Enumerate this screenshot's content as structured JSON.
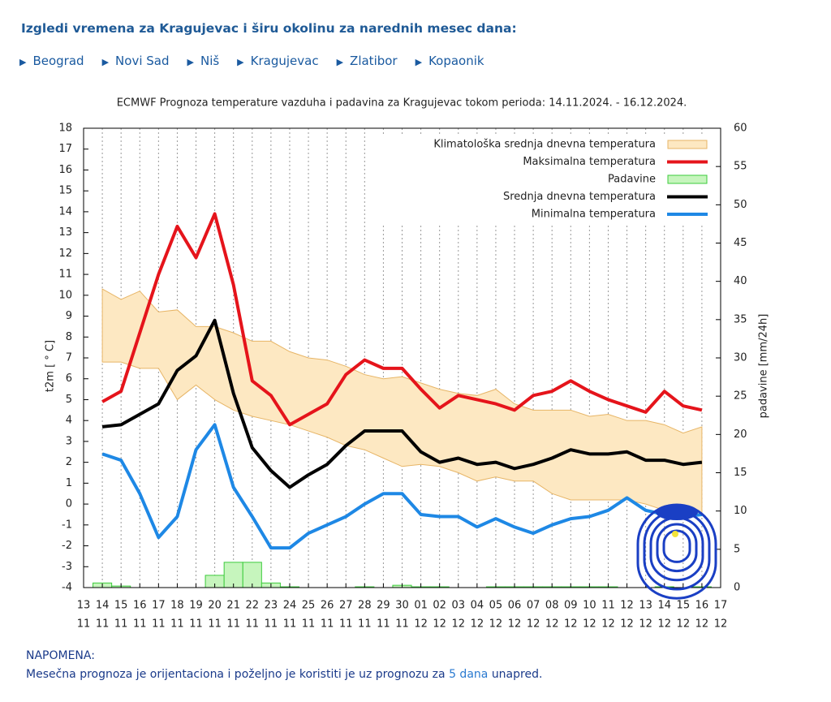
{
  "header": {
    "title": "Izgledi vremena za Kragujevac i širu okolinu za narednih mesec dana:"
  },
  "nav": [
    "Beograd",
    "Novi Sad",
    "Niš",
    "Kragujevac",
    "Zlatibor",
    "Kopaonik"
  ],
  "chart_data": {
    "type": "line",
    "title": "ECMWF Prognoza temperature vazduha i padavina za Kragujevac tokom perioda: 14.11.2024. - 16.12.2024.",
    "y_label": "t2m [ ° C]",
    "y2_label": "padavine [mm/24h]",
    "categories": [
      [
        "13",
        "11"
      ],
      [
        "14",
        "11"
      ],
      [
        "15",
        "11"
      ],
      [
        "16",
        "11"
      ],
      [
        "17",
        "11"
      ],
      [
        "18",
        "11"
      ],
      [
        "19",
        "11"
      ],
      [
        "20",
        "11"
      ],
      [
        "21",
        "11"
      ],
      [
        "22",
        "11"
      ],
      [
        "23",
        "11"
      ],
      [
        "24",
        "11"
      ],
      [
        "25",
        "11"
      ],
      [
        "26",
        "11"
      ],
      [
        "27",
        "11"
      ],
      [
        "28",
        "11"
      ],
      [
        "29",
        "11"
      ],
      [
        "30",
        "11"
      ],
      [
        "01",
        "12"
      ],
      [
        "02",
        "12"
      ],
      [
        "03",
        "12"
      ],
      [
        "04",
        "12"
      ],
      [
        "05",
        "12"
      ],
      [
        "06",
        "12"
      ],
      [
        "07",
        "12"
      ],
      [
        "08",
        "12"
      ],
      [
        "09",
        "12"
      ],
      [
        "10",
        "12"
      ],
      [
        "11",
        "12"
      ],
      [
        "12",
        "12"
      ],
      [
        "13",
        "12"
      ],
      [
        "14",
        "12"
      ],
      [
        "15",
        "12"
      ],
      [
        "16",
        "12"
      ],
      [
        "17",
        "12"
      ]
    ],
    "ylim": [
      -4,
      18
    ],
    "yticks": [
      -4,
      -3,
      -2,
      -1,
      0,
      1,
      2,
      3,
      4,
      5,
      6,
      7,
      8,
      9,
      10,
      11,
      12,
      13,
      14,
      15,
      16,
      17,
      18
    ],
    "y2lim": [
      0,
      60
    ],
    "y2ticks": [
      0,
      5,
      10,
      15,
      20,
      25,
      30,
      35,
      40,
      45,
      50,
      55,
      60
    ],
    "grid": true,
    "series": [
      {
        "name": "Klimatološka srednja dnevna temperatura",
        "type": "band",
        "color": "#fde8c2",
        "high": [
          null,
          10.3,
          9.8,
          10.2,
          9.2,
          9.3,
          8.5,
          8.5,
          8.2,
          7.8,
          7.8,
          7.3,
          7.0,
          6.9,
          6.6,
          6.2,
          6.0,
          6.1,
          5.8,
          5.5,
          5.3,
          5.2,
          5.5,
          4.8,
          4.5,
          4.5,
          4.5,
          4.2,
          4.3,
          4.0,
          4.0,
          3.8,
          3.4,
          3.7,
          null
        ],
        "low": [
          null,
          6.8,
          6.8,
          6.5,
          6.5,
          5.0,
          5.7,
          5.0,
          4.5,
          4.2,
          4.0,
          3.8,
          3.5,
          3.2,
          2.8,
          2.6,
          2.2,
          1.8,
          1.9,
          1.8,
          1.5,
          1.1,
          1.3,
          1.1,
          1.1,
          0.5,
          0.2,
          0.2,
          0.2,
          0.2,
          0.0,
          -0.3,
          -0.5,
          -0.5,
          null
        ]
      },
      {
        "name": "Maksimalna temperatura",
        "type": "line",
        "color": "#e5141b",
        "values": [
          null,
          4.9,
          5.4,
          8.2,
          11,
          13.3,
          11.8,
          13.9,
          10.5,
          5.9,
          5.2,
          3.8,
          4.3,
          4.8,
          6.2,
          6.9,
          6.5,
          6.5,
          5.5,
          4.6,
          5.2,
          5.0,
          4.8,
          4.5,
          5.2,
          5.4,
          5.9,
          5.4,
          5.0,
          4.7,
          4.4,
          5.4,
          4.7,
          4.5,
          null
        ]
      },
      {
        "name": "Padavine",
        "type": "bar",
        "axis": "y2",
        "color": "#c6f5bd",
        "values": [
          null,
          0.6,
          0.2,
          0,
          0,
          0,
          0,
          1.6,
          3.3,
          3.3,
          0.6,
          0.1,
          0,
          0,
          0,
          0.1,
          0,
          0.3,
          0.1,
          0.1,
          0,
          0,
          0.1,
          0.1,
          0.1,
          0.1,
          0.1,
          0.1,
          0.1,
          0,
          0,
          0.1,
          0,
          0.1,
          null
        ]
      },
      {
        "name": "Srednja dnevna temperatura",
        "type": "line",
        "color": "#000000",
        "values": [
          null,
          3.7,
          3.8,
          4.3,
          4.8,
          6.4,
          7.1,
          8.8,
          5.3,
          2.7,
          1.6,
          0.8,
          1.4,
          1.9,
          2.8,
          3.5,
          3.5,
          3.5,
          2.5,
          2.0,
          2.2,
          1.9,
          2.0,
          1.7,
          1.9,
          2.2,
          2.6,
          2.4,
          2.4,
          2.5,
          2.1,
          2.1,
          1.9,
          2.0,
          null
        ]
      },
      {
        "name": "Minimalna temperatura",
        "type": "line",
        "color": "#1e88e5",
        "values": [
          null,
          2.4,
          2.1,
          0.5,
          -1.6,
          -0.6,
          2.6,
          3.8,
          0.8,
          -0.6,
          -2.1,
          -2.1,
          -1.4,
          -1.0,
          -0.6,
          0.0,
          0.5,
          0.5,
          -0.5,
          -0.6,
          -0.6,
          -1.1,
          -0.7,
          -1.1,
          -1.4,
          -1.0,
          -0.7,
          -0.6,
          -0.3,
          0.3,
          -0.3,
          -0.5,
          -0.6,
          -0.5,
          null
        ]
      }
    ]
  },
  "note": {
    "title": "NAPOMENA:",
    "text": "Mesečna prognoza je orijentaciona i poželjno je koristiti je uz prognozu za",
    "link": "5 dana",
    "after": "unapred."
  }
}
